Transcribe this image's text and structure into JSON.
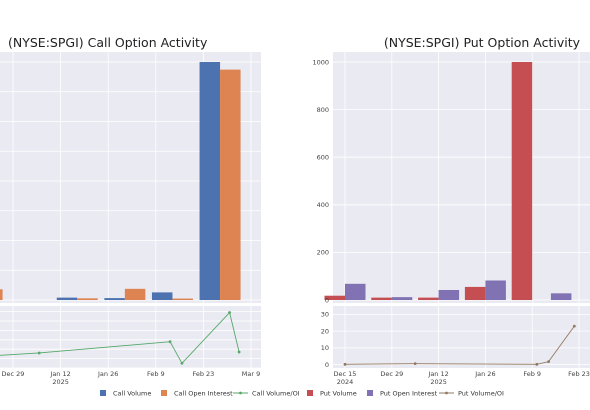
{
  "colors": {
    "panel_bg": "#eaeaf2",
    "grid": "#ffffff",
    "call_volume": "#4c72b0",
    "call_open_interest": "#dd8452",
    "call_volume_oi": "#55a868",
    "put_volume": "#c44e52",
    "put_open_interest": "#8172b3",
    "put_volume_oi": "#937860"
  },
  "legend": [
    {
      "label": "Call Volume",
      "key": "call_volume",
      "kind": "box"
    },
    {
      "label": "Call Open Interest",
      "key": "call_open_interest",
      "kind": "box"
    },
    {
      "label": "Call Volume/OI",
      "key": "call_volume_oi",
      "kind": "line"
    },
    {
      "label": "Put Volume",
      "key": "put_volume",
      "kind": "box"
    },
    {
      "label": "Put Open Interest",
      "key": "put_open_interest",
      "kind": "box"
    },
    {
      "label": "Put Volume/OI",
      "key": "put_volume_oi",
      "kind": "line"
    }
  ],
  "chart_data": [
    {
      "id": "call",
      "type": "bar",
      "title": "(NYSE:SPGI) Call Option Activity",
      "x_ticks": [
        {
          "label": "Dec 29",
          "sub": ""
        },
        {
          "label": "Jan 12",
          "sub": "2025"
        },
        {
          "label": "Jan 26",
          "sub": ""
        },
        {
          "label": "Feb 9",
          "sub": ""
        },
        {
          "label": "Feb 23",
          "sub": ""
        },
        {
          "label": "Mar 9",
          "sub": ""
        }
      ],
      "bar_groups": [
        -0.65,
        1.35,
        2.35,
        3.35,
        4.35
      ],
      "series": [
        {
          "name": "Call Volume",
          "key": "call_volume",
          "values": [
            45,
            10,
            8,
            32,
            1000
          ]
        },
        {
          "name": "Call Open Interest",
          "key": "call_open_interest",
          "values": [
            45,
            7,
            47,
            6,
            968
          ]
        }
      ],
      "ylim": [
        0,
        1000
      ],
      "y_ticks": [],
      "ratio": {
        "name": "Call Volume/OI",
        "key": "call_volume_oi",
        "x": [
          -1,
          0.55,
          3.3,
          3.55,
          4.55,
          4.75
        ],
        "values": [
          0.07,
          0.3,
          0.9,
          -0.25,
          2.45,
          0.35
        ],
        "ylim": [
          -0.5,
          2.8
        ],
        "y_ticks": []
      }
    },
    {
      "id": "put",
      "type": "bar",
      "title": "(NYSE:SPGI) Put Option Activity",
      "x_ticks": [
        {
          "label": "Dec 15",
          "sub": "2024"
        },
        {
          "label": "Dec 29",
          "sub": ""
        },
        {
          "label": "Jan 12",
          "sub": "2025"
        },
        {
          "label": "Jan 26",
          "sub": ""
        },
        {
          "label": "Feb 9",
          "sub": ""
        },
        {
          "label": "Feb 23",
          "sub": ""
        }
      ],
      "bar_groups": [
        0,
        1,
        2,
        3,
        4,
        4.4
      ],
      "series": [
        {
          "name": "Put Volume",
          "key": "put_volume",
          "values": [
            18,
            10,
            10,
            55,
            1000,
            null
          ]
        },
        {
          "name": "Put Open Interest",
          "key": "put_open_interest",
          "values": [
            68,
            12,
            42,
            82,
            null,
            28
          ]
        }
      ],
      "ylim": [
        0,
        1000
      ],
      "y_ticks": [
        "0",
        "200",
        "400",
        "600",
        "800",
        "1000"
      ],
      "ratio": {
        "name": "Put Volume/OI",
        "key": "put_volume_oi",
        "x": [
          0,
          1.5,
          4.1,
          4.35,
          4.9
        ],
        "values": [
          0.2,
          0.6,
          0.2,
          1.8,
          23
        ],
        "ylim": [
          -2,
          35
        ],
        "y_ticks": [
          "0",
          "10",
          "20",
          "30"
        ]
      }
    }
  ]
}
